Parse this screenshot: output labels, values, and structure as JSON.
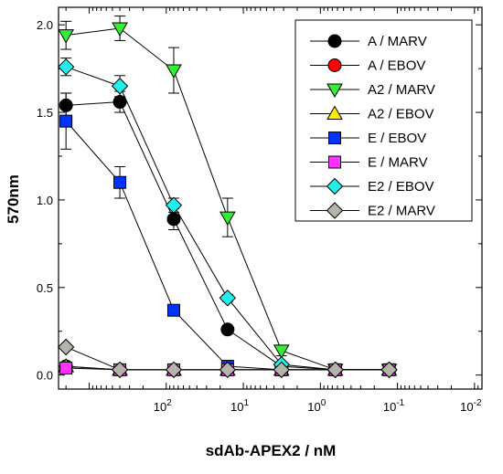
{
  "chart_data": {
    "type": "line",
    "xlabel": "sdAb-APEX2 / nM",
    "ylabel": "570nm",
    "x_scale": "log",
    "x_reversed": true,
    "xlim": [
      2500,
      0.008
    ],
    "ylim": [
      -0.08,
      2.1
    ],
    "grid": false,
    "legend_position": "top-right",
    "x_ticks": [
      {
        "base": "10",
        "exp": "2",
        "value": 100
      },
      {
        "base": "10",
        "exp": "1",
        "value": 10
      },
      {
        "base": "10",
        "exp": "0",
        "value": 1
      },
      {
        "base": "10",
        "exp": "-1",
        "value": 0.1
      },
      {
        "base": "10",
        "exp": "-2",
        "value": 0.01
      }
    ],
    "y_ticks": [
      "0.0",
      "0.5",
      "1.0",
      "1.5",
      "2.0"
    ],
    "x": [
      2000,
      400,
      80,
      16,
      3.2,
      0.64,
      0.128
    ],
    "series": [
      {
        "name": "A / MARV",
        "marker": "circle",
        "color": "#000000",
        "values": [
          1.54,
          1.56,
          0.89,
          0.26,
          0.05,
          0.03,
          0.03
        ],
        "errors": [
          0.07,
          0.06,
          0.06,
          0.02,
          0.01,
          0.01,
          0.01
        ]
      },
      {
        "name": "A / EBOV",
        "marker": "circle",
        "color": "#ff0000",
        "values": [
          0.05,
          0.03,
          0.03,
          0.03,
          0.03,
          0.03,
          0.03
        ],
        "errors": [
          0,
          0,
          0,
          0,
          0,
          0,
          0
        ]
      },
      {
        "name": "A2 / MARV",
        "marker": "tri-down",
        "color": "#33ee33",
        "values": [
          1.94,
          1.98,
          1.74,
          0.9,
          0.14,
          0.03,
          0.03
        ],
        "errors": [
          0.08,
          0.07,
          0.13,
          0.11,
          0.03,
          0.01,
          0.01
        ]
      },
      {
        "name": "A2 / EBOV",
        "marker": "tri-up",
        "color": "#ffee00",
        "values": [
          0.05,
          0.03,
          0.03,
          0.03,
          0.03,
          0.03,
          0.03
        ],
        "errors": [
          0,
          0,
          0,
          0,
          0,
          0,
          0
        ]
      },
      {
        "name": "E / EBOV",
        "marker": "square",
        "color": "#0033ff",
        "values": [
          1.45,
          1.1,
          0.37,
          0.05,
          0.03,
          0.03,
          0.03
        ],
        "errors": [
          0.16,
          0.09,
          0.02,
          0.01,
          0.01,
          0.01,
          0.01
        ]
      },
      {
        "name": "E / MARV",
        "marker": "square",
        "color": "#ff33ff",
        "values": [
          0.04,
          0.03,
          0.03,
          0.03,
          0.03,
          0.03,
          0.03
        ],
        "errors": [
          0,
          0,
          0,
          0,
          0,
          0,
          0
        ]
      },
      {
        "name": "E2 / EBOV",
        "marker": "diamond",
        "color": "#22eeee",
        "values": [
          1.76,
          1.65,
          0.97,
          0.44,
          0.06,
          0.03,
          0.03
        ],
        "errors": [
          0.05,
          0.06,
          0.04,
          0.02,
          0.01,
          0.01,
          0.01
        ]
      },
      {
        "name": "E2 / MARV",
        "marker": "diamond",
        "color": "#b4b4a8",
        "values": [
          0.16,
          0.03,
          0.03,
          0.03,
          0.03,
          0.03,
          0.03
        ],
        "errors": [
          0,
          0,
          0,
          0,
          0,
          0,
          0
        ]
      }
    ]
  }
}
